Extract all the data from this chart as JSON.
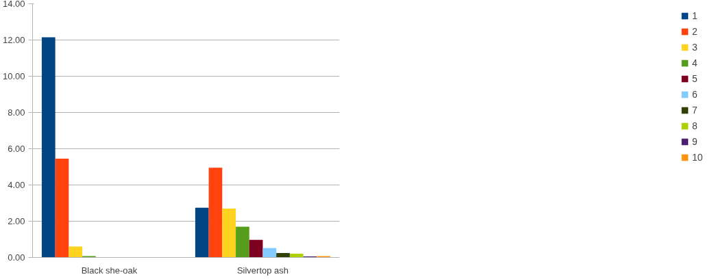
{
  "chart_data": {
    "type": "bar",
    "categories": [
      "Black she-oak",
      "Silvertop ash"
    ],
    "series": [
      {
        "name": "1",
        "color": "#004586",
        "values": [
          12.15,
          2.75
        ]
      },
      {
        "name": "2",
        "color": "#ff420e",
        "values": [
          5.45,
          4.95
        ]
      },
      {
        "name": "3",
        "color": "#ffd320",
        "values": [
          0.6,
          2.7
        ]
      },
      {
        "name": "4",
        "color": "#579d1c",
        "values": [
          0.08,
          1.7
        ]
      },
      {
        "name": "5",
        "color": "#7e0021",
        "values": [
          0,
          0.97
        ]
      },
      {
        "name": "6",
        "color": "#83caff",
        "values": [
          0,
          0.52
        ]
      },
      {
        "name": "7",
        "color": "#314004",
        "values": [
          0,
          0.25
        ]
      },
      {
        "name": "8",
        "color": "#aecf00",
        "values": [
          0,
          0.21
        ]
      },
      {
        "name": "9",
        "color": "#4b1f6f",
        "values": [
          0,
          0.06
        ]
      },
      {
        "name": "10",
        "color": "#ff950e",
        "values": [
          0,
          0.08
        ]
      }
    ],
    "ylim": [
      0,
      14
    ],
    "yticks": [
      {
        "value": 0,
        "label": "0.00"
      },
      {
        "value": 2,
        "label": "2.00"
      },
      {
        "value": 4,
        "label": "4.00"
      },
      {
        "value": 6,
        "label": "6.00"
      },
      {
        "value": 8,
        "label": "8.00"
      },
      {
        "value": 10,
        "label": "10.00"
      },
      {
        "value": 12,
        "label": "12.00"
      },
      {
        "value": 14,
        "label": "14.00"
      }
    ],
    "grid": "y",
    "legend": "right"
  }
}
